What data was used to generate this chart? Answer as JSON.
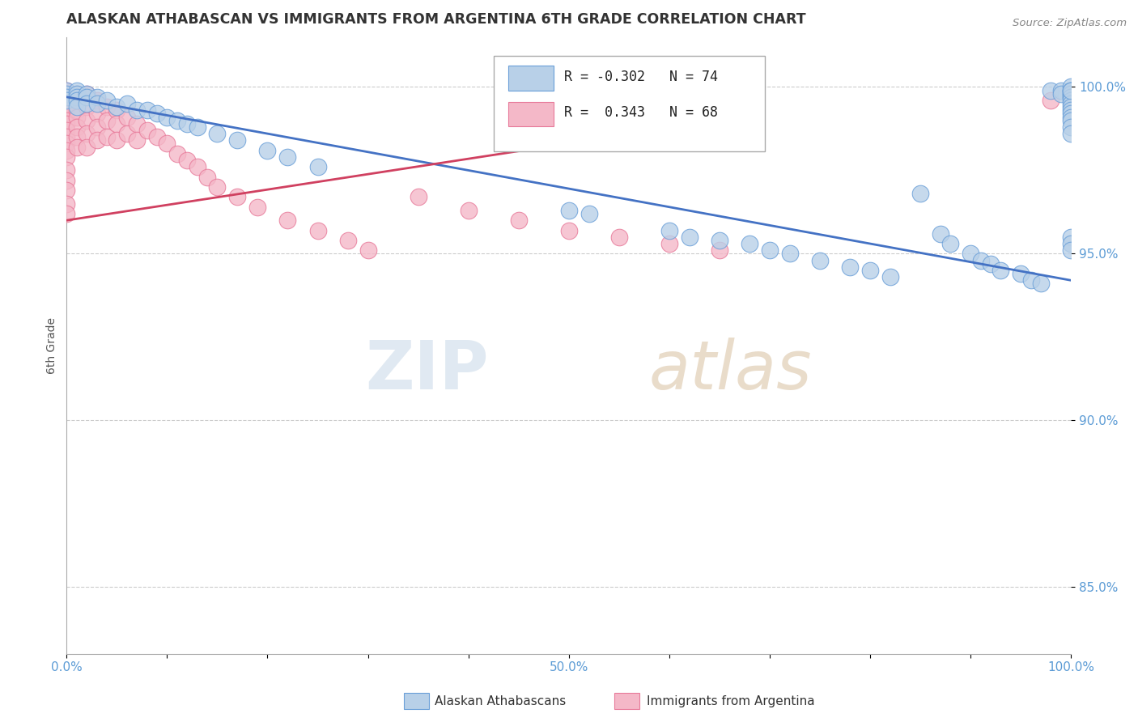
{
  "title": "ALASKAN ATHABASCAN VS IMMIGRANTS FROM ARGENTINA 6TH GRADE CORRELATION CHART",
  "source": "Source: ZipAtlas.com",
  "ylabel": "6th Grade",
  "xlim": [
    0.0,
    1.0
  ],
  "ylim": [
    0.83,
    1.015
  ],
  "yticks": [
    0.85,
    0.9,
    0.95,
    1.0
  ],
  "ytick_labels": [
    "85.0%",
    "90.0%",
    "95.0%",
    "100.0%"
  ],
  "xticks": [
    0.0,
    0.1,
    0.2,
    0.3,
    0.4,
    0.5,
    0.6,
    0.7,
    0.8,
    0.9,
    1.0
  ],
  "xtick_labels": [
    "0.0%",
    "",
    "",
    "",
    "",
    "50.0%",
    "",
    "",
    "",
    "",
    "100.0%"
  ],
  "blue_label": "Alaskan Athabascans",
  "pink_label": "Immigrants from Argentina",
  "blue_R": -0.302,
  "blue_N": 74,
  "pink_R": 0.343,
  "pink_N": 68,
  "blue_color": "#b8d0e8",
  "pink_color": "#f4b8c8",
  "blue_edge_color": "#6a9fd8",
  "pink_edge_color": "#e87a9a",
  "blue_line_color": "#4472c4",
  "pink_line_color": "#d04060",
  "blue_line_x": [
    0.0,
    1.0
  ],
  "blue_line_y": [
    0.997,
    0.942
  ],
  "pink_line_x": [
    0.0,
    0.65
  ],
  "pink_line_y": [
    0.96,
    0.99
  ],
  "blue_scatter_x": [
    0.0,
    0.0,
    0.0,
    0.0,
    0.01,
    0.01,
    0.01,
    0.01,
    0.01,
    0.02,
    0.02,
    0.02,
    0.03,
    0.03,
    0.04,
    0.05,
    0.06,
    0.07,
    0.08,
    0.09,
    0.1,
    0.11,
    0.12,
    0.13,
    0.15,
    0.17,
    0.2,
    0.22,
    0.25,
    0.5,
    0.52,
    0.6,
    0.62,
    0.65,
    0.68,
    0.7,
    0.72,
    0.75,
    0.78,
    0.8,
    0.82,
    0.85,
    0.87,
    0.88,
    0.9,
    0.91,
    0.92,
    0.93,
    0.95,
    0.96,
    0.97,
    0.98,
    0.99,
    0.99,
    1.0,
    1.0,
    1.0,
    1.0,
    1.0,
    1.0,
    1.0,
    1.0,
    1.0,
    1.0,
    1.0,
    1.0,
    1.0,
    1.0,
    1.0,
    1.0,
    1.0,
    1.0,
    1.0,
    1.0
  ],
  "blue_scatter_y": [
    0.999,
    0.998,
    0.997,
    0.996,
    0.999,
    0.998,
    0.997,
    0.996,
    0.994,
    0.998,
    0.997,
    0.995,
    0.997,
    0.995,
    0.996,
    0.994,
    0.995,
    0.993,
    0.993,
    0.992,
    0.991,
    0.99,
    0.989,
    0.988,
    0.986,
    0.984,
    0.981,
    0.979,
    0.976,
    0.963,
    0.962,
    0.957,
    0.955,
    0.954,
    0.953,
    0.951,
    0.95,
    0.948,
    0.946,
    0.945,
    0.943,
    0.968,
    0.956,
    0.953,
    0.95,
    0.948,
    0.947,
    0.945,
    0.944,
    0.942,
    0.941,
    0.999,
    0.999,
    0.998,
    1.0,
    0.999,
    0.999,
    0.998,
    0.998,
    0.997,
    0.997,
    0.996,
    0.995,
    0.994,
    0.993,
    0.992,
    0.991,
    0.99,
    0.988,
    0.986,
    0.955,
    0.953,
    0.951,
    0.999
  ],
  "pink_scatter_x": [
    0.0,
    0.0,
    0.0,
    0.0,
    0.0,
    0.0,
    0.0,
    0.0,
    0.0,
    0.0,
    0.0,
    0.0,
    0.0,
    0.0,
    0.0,
    0.0,
    0.0,
    0.0,
    0.0,
    0.0,
    0.01,
    0.01,
    0.01,
    0.01,
    0.01,
    0.01,
    0.01,
    0.02,
    0.02,
    0.02,
    0.02,
    0.02,
    0.03,
    0.03,
    0.03,
    0.03,
    0.04,
    0.04,
    0.04,
    0.05,
    0.05,
    0.05,
    0.06,
    0.06,
    0.07,
    0.07,
    0.08,
    0.09,
    0.1,
    0.11,
    0.12,
    0.13,
    0.14,
    0.15,
    0.17,
    0.19,
    0.22,
    0.25,
    0.28,
    0.3,
    0.35,
    0.4,
    0.45,
    0.5,
    0.55,
    0.6,
    0.65,
    0.98
  ],
  "pink_scatter_y": [
    0.999,
    0.998,
    0.997,
    0.996,
    0.995,
    0.994,
    0.993,
    0.992,
    0.99,
    0.989,
    0.987,
    0.985,
    0.983,
    0.981,
    0.979,
    0.975,
    0.972,
    0.969,
    0.965,
    0.962,
    0.998,
    0.996,
    0.993,
    0.991,
    0.988,
    0.985,
    0.982,
    0.998,
    0.994,
    0.99,
    0.986,
    0.982,
    0.996,
    0.992,
    0.988,
    0.984,
    0.994,
    0.99,
    0.985,
    0.993,
    0.989,
    0.984,
    0.991,
    0.986,
    0.989,
    0.984,
    0.987,
    0.985,
    0.983,
    0.98,
    0.978,
    0.976,
    0.973,
    0.97,
    0.967,
    0.964,
    0.96,
    0.957,
    0.954,
    0.951,
    0.967,
    0.963,
    0.96,
    0.957,
    0.955,
    0.953,
    0.951,
    0.996
  ]
}
